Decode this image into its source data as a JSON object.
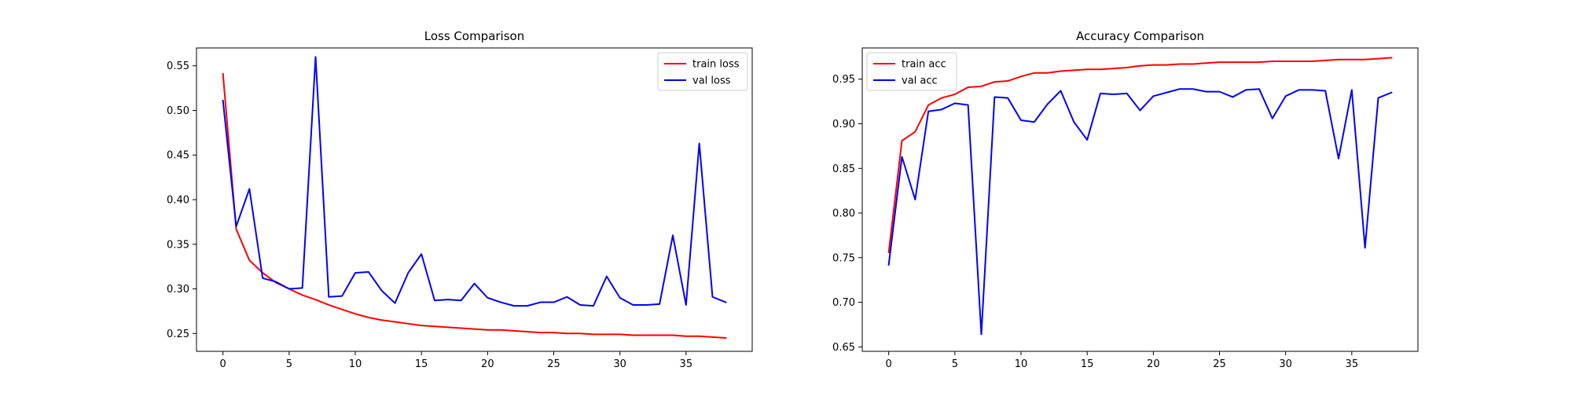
{
  "chart_data": [
    {
      "type": "line",
      "title": "Loss Comparison",
      "xlabel": "",
      "ylabel": "",
      "xlim": [
        -2,
        40
      ],
      "ylim": [
        0.23,
        0.57
      ],
      "xticks": [
        0,
        5,
        10,
        15,
        20,
        25,
        30,
        35
      ],
      "yticks": [
        0.25,
        0.3,
        0.35,
        0.4,
        0.45,
        0.5,
        0.55
      ],
      "ytick_format": 2,
      "grid": false,
      "legend_position": "top-right",
      "x": [
        0,
        1,
        2,
        3,
        4,
        5,
        6,
        7,
        8,
        9,
        10,
        11,
        12,
        13,
        14,
        15,
        16,
        17,
        18,
        19,
        20,
        21,
        22,
        23,
        24,
        25,
        26,
        27,
        28,
        29,
        30,
        31,
        32,
        33,
        34,
        35,
        36,
        37,
        38
      ],
      "series": [
        {
          "name": "train loss",
          "color": "#ff0000",
          "values": [
            0.541,
            0.367,
            0.332,
            0.318,
            0.307,
            0.3,
            0.293,
            0.288,
            0.282,
            0.277,
            0.272,
            0.268,
            0.265,
            0.263,
            0.261,
            0.259,
            0.258,
            0.257,
            0.256,
            0.255,
            0.254,
            0.254,
            0.253,
            0.252,
            0.251,
            0.251,
            0.25,
            0.25,
            0.249,
            0.249,
            0.249,
            0.248,
            0.248,
            0.248,
            0.248,
            0.247,
            0.247,
            0.246,
            0.245
          ]
        },
        {
          "name": "val loss",
          "color": "#0000ff",
          "values": [
            0.511,
            0.37,
            0.412,
            0.312,
            0.308,
            0.3,
            0.301,
            0.56,
            0.291,
            0.292,
            0.318,
            0.319,
            0.298,
            0.284,
            0.318,
            0.339,
            0.287,
            0.288,
            0.287,
            0.306,
            0.29,
            0.285,
            0.281,
            0.281,
            0.285,
            0.285,
            0.291,
            0.282,
            0.281,
            0.314,
            0.29,
            0.282,
            0.282,
            0.283,
            0.36,
            0.282,
            0.463,
            0.291,
            0.285
          ]
        }
      ]
    },
    {
      "type": "line",
      "title": "Accuracy Comparison",
      "xlabel": "",
      "ylabel": "",
      "xlim": [
        -2,
        40
      ],
      "ylim": [
        0.645,
        0.985
      ],
      "xticks": [
        0,
        5,
        10,
        15,
        20,
        25,
        30,
        35
      ],
      "yticks": [
        0.65,
        0.7,
        0.75,
        0.8,
        0.85,
        0.9,
        0.95
      ],
      "ytick_format": 2,
      "grid": false,
      "legend_position": "top-left",
      "x": [
        0,
        1,
        2,
        3,
        4,
        5,
        6,
        7,
        8,
        9,
        10,
        11,
        12,
        13,
        14,
        15,
        16,
        17,
        18,
        19,
        20,
        21,
        22,
        23,
        24,
        25,
        26,
        27,
        28,
        29,
        30,
        31,
        32,
        33,
        34,
        35,
        36,
        37,
        38
      ],
      "series": [
        {
          "name": "train acc",
          "color": "#ff0000",
          "values": [
            0.756,
            0.881,
            0.891,
            0.921,
            0.929,
            0.933,
            0.941,
            0.942,
            0.947,
            0.948,
            0.953,
            0.957,
            0.957,
            0.959,
            0.96,
            0.961,
            0.961,
            0.962,
            0.963,
            0.965,
            0.966,
            0.966,
            0.967,
            0.967,
            0.968,
            0.969,
            0.969,
            0.969,
            0.969,
            0.97,
            0.97,
            0.97,
            0.97,
            0.971,
            0.972,
            0.972,
            0.972,
            0.973,
            0.974
          ]
        },
        {
          "name": "val acc",
          "color": "#0000ff",
          "values": [
            0.742,
            0.863,
            0.815,
            0.914,
            0.916,
            0.923,
            0.921,
            0.664,
            0.93,
            0.929,
            0.904,
            0.902,
            0.922,
            0.937,
            0.902,
            0.882,
            0.934,
            0.933,
            0.934,
            0.915,
            0.931,
            0.935,
            0.939,
            0.939,
            0.936,
            0.936,
            0.93,
            0.938,
            0.939,
            0.906,
            0.931,
            0.938,
            0.938,
            0.937,
            0.861,
            0.938,
            0.761,
            0.929,
            0.935
          ]
        }
      ]
    }
  ]
}
